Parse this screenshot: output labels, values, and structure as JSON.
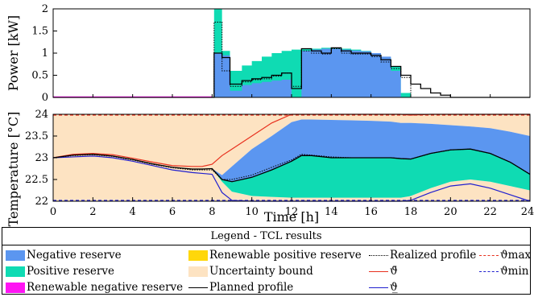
{
  "chart_data": [
    {
      "type": "area",
      "ylabel": "Power [kW]",
      "xlim": [
        0,
        24
      ],
      "ylim": [
        0,
        2
      ],
      "yticks": [
        "0",
        "0.5",
        "1",
        "1.5",
        "2"
      ],
      "x": [
        7.5,
        8.0,
        8.1,
        8.5,
        8.9,
        9.5,
        10.0,
        10.5,
        11.0,
        11.5,
        12.0,
        12.5,
        13.0,
        13.5,
        14.0,
        14.5,
        15.0,
        15.5,
        16.0,
        16.5,
        17.0,
        17.5,
        18.0,
        18.5,
        19.0,
        19.5,
        20.0
      ],
      "series": [
        {
          "name": "Negative reserve",
          "values": [
            0,
            0,
            1.0,
            0.95,
            0.15,
            0.28,
            0.32,
            0.35,
            0.38,
            0.4,
            0.0,
            1.05,
            1.08,
            1.1,
            1.1,
            1.08,
            1.06,
            1.04,
            1.0,
            0.92,
            0.6,
            0.0,
            0.0,
            0.0,
            0.0,
            0.0,
            0.0
          ]
        },
        {
          "name": "Positive reserve",
          "values": [
            0,
            0,
            2.0,
            1.05,
            0.6,
            0.72,
            0.82,
            0.92,
            1.0,
            1.05,
            1.08,
            1.1,
            1.1,
            1.12,
            1.12,
            1.1,
            1.08,
            1.05,
            1.0,
            0.9,
            0.7,
            0.1,
            0.0,
            0.0,
            0.0,
            0.0,
            0.0
          ]
        },
        {
          "name": "Planned profile",
          "values": [
            0,
            0,
            1.0,
            0.9,
            0.3,
            0.38,
            0.42,
            0.45,
            0.5,
            0.55,
            0.2,
            1.1,
            1.05,
            1.0,
            1.12,
            1.05,
            1.0,
            1.0,
            0.95,
            0.85,
            0.7,
            0.5,
            0.3,
            0.2,
            0.1,
            0.05,
            0.0
          ]
        },
        {
          "name": "Realized profile",
          "values": [
            0,
            0,
            1.7,
            0.6,
            0.25,
            0.35,
            0.4,
            0.42,
            0.48,
            0.55,
            0.25,
            1.05,
            1.0,
            0.98,
            1.1,
            1.0,
            0.98,
            0.98,
            0.92,
            0.8,
            0.65,
            0.45,
            0.0,
            0.0,
            0.0,
            0.0,
            0.0
          ]
        }
      ]
    },
    {
      "type": "area",
      "xlabel": "Time [h]",
      "ylabel": "Temperature [°C]",
      "xlim": [
        0,
        24
      ],
      "ylim": [
        22,
        24
      ],
      "xticks": [
        "0",
        "2",
        "4",
        "6",
        "8",
        "10",
        "12",
        "14",
        "16",
        "18",
        "20",
        "22",
        "24"
      ],
      "yticks": [
        "22",
        "22.5",
        "23",
        "23.5",
        "24"
      ],
      "x": [
        0,
        1,
        2,
        3,
        4,
        5,
        6,
        7,
        7.5,
        8,
        8.5,
        9,
        10,
        11,
        12,
        12.5,
        13,
        14,
        15,
        16,
        17,
        17.5,
        18,
        19,
        20,
        21,
        22,
        23,
        24
      ],
      "series": [
        {
          "name": "ϑ̄",
          "values": [
            23.0,
            23.08,
            23.1,
            23.07,
            22.99,
            22.9,
            22.82,
            22.8,
            22.8,
            22.85,
            23.05,
            23.2,
            23.5,
            23.8,
            24.0,
            24.0,
            24.0,
            24.0,
            24.0,
            24.0,
            24.0,
            24.0,
            23.98,
            24.0,
            24.0,
            24.0,
            24.0,
            24.0,
            24.0
          ]
        },
        {
          "name": "ϑ̲",
          "values": [
            23.0,
            23.02,
            23.04,
            23.0,
            22.92,
            22.82,
            22.72,
            22.66,
            22.64,
            22.62,
            22.2,
            22.02,
            22.0,
            22.0,
            22.0,
            22.0,
            22.0,
            22.0,
            22.0,
            22.0,
            22.0,
            22.0,
            22.02,
            22.2,
            22.35,
            22.4,
            22.3,
            22.15,
            22.0
          ]
        },
        {
          "name": "Planned profile",
          "values": [
            23.0,
            23.06,
            23.08,
            23.04,
            22.96,
            22.86,
            22.78,
            22.74,
            22.74,
            22.75,
            22.5,
            22.45,
            22.55,
            22.72,
            22.92,
            23.05,
            23.05,
            23.0,
            23.0,
            23.0,
            23.0,
            22.98,
            22.97,
            23.1,
            23.18,
            23.2,
            23.1,
            22.9,
            22.62
          ]
        },
        {
          "name": "Realized profile",
          "values": [
            23.0,
            23.05,
            23.07,
            23.03,
            22.95,
            22.85,
            22.77,
            22.72,
            22.72,
            22.72,
            22.5,
            22.5,
            22.6,
            22.78,
            22.95,
            23.08,
            23.06,
            23.02,
            23.0,
            23.0,
            23.0,
            22.98,
            22.97,
            23.1,
            23.18,
            23.2,
            23.1,
            22.9,
            22.62
          ]
        },
        {
          "name": "Negative reserve upper",
          "values": [
            23.0,
            23.06,
            23.08,
            23.04,
            22.96,
            22.86,
            22.78,
            22.74,
            22.74,
            22.75,
            22.6,
            22.8,
            23.2,
            23.5,
            23.82,
            23.88,
            23.88,
            23.87,
            23.86,
            23.85,
            23.83,
            23.8,
            23.8,
            23.78,
            23.75,
            23.72,
            23.68,
            23.6,
            23.5
          ]
        },
        {
          "name": "Positive reserve lower",
          "values": [
            23.0,
            23.06,
            23.08,
            23.04,
            22.96,
            22.86,
            22.78,
            22.74,
            22.74,
            22.75,
            22.45,
            22.22,
            22.12,
            22.1,
            22.08,
            22.08,
            22.08,
            22.08,
            22.08,
            22.08,
            22.08,
            22.08,
            22.12,
            22.3,
            22.45,
            22.5,
            22.45,
            22.35,
            22.25
          ]
        }
      ]
    }
  ],
  "legend": {
    "title": "Legend - TCL results",
    "items": [
      {
        "label": "Negative reserve",
        "kind": "patch",
        "color": "#5b96f0"
      },
      {
        "label": "Positive reserve",
        "kind": "patch",
        "color": "#0fdbb3"
      },
      {
        "label": "Renewable negative reserve",
        "kind": "patch",
        "color": "#ff14f3"
      },
      {
        "label": "Renewable positive reserve",
        "kind": "patch",
        "color": "#ffd70a"
      },
      {
        "label": "Uncertainty bound",
        "kind": "patch",
        "color": "#fde3c2"
      },
      {
        "label": "Planned profile",
        "kind": "line",
        "color": "#000000"
      },
      {
        "label": "Realized profile",
        "kind": "dotted",
        "color": "#000000"
      },
      {
        "label": "ϑ̄",
        "kind": "line",
        "color": "#e8301e"
      },
      {
        "label": "ϑ̲",
        "kind": "line",
        "color": "#1f1fcf"
      },
      {
        "label": "ϑmax",
        "kind": "dashed",
        "color": "#e8301e"
      },
      {
        "label": "ϑmin",
        "kind": "dashed",
        "color": "#1f1fcf"
      }
    ]
  },
  "colors": {
    "negative_reserve": "#5b96f0",
    "positive_reserve": "#0fdbb3",
    "uncertainty": "#fde3c2",
    "upper": "#e8301e",
    "lower": "#1f1fcf",
    "profile": "#000000"
  }
}
